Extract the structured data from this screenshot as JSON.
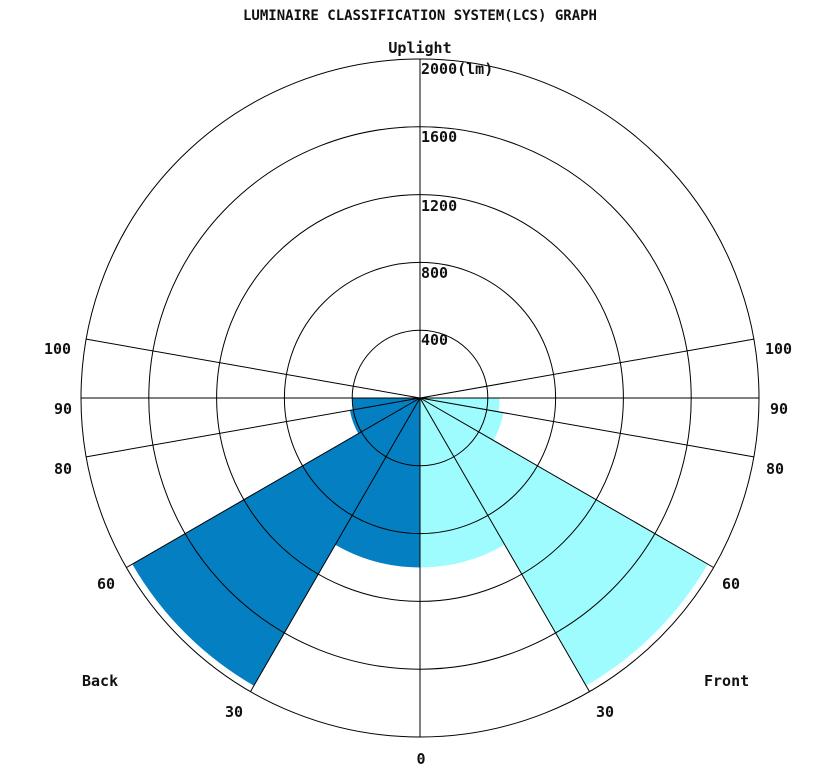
{
  "chart_data": {
    "type": "polar-area",
    "title": "LUMINAIRE CLASSIFICATION SYSTEM(LCS) GRAPH",
    "unit_label": "2000(lm)",
    "radial_ticks": [
      "400",
      "800",
      "1200",
      "1600"
    ],
    "rmax": 2000,
    "angle_labels": {
      "front": [
        "30",
        "60",
        "80",
        "90",
        "100"
      ],
      "back": [
        "30",
        "60",
        "80",
        "90",
        "100"
      ],
      "bottom": "0",
      "top": "Uplight"
    },
    "side_labels": {
      "front": "Front",
      "back": "Back"
    },
    "colors": {
      "back": "#0480c2",
      "front": "#9ffcfe",
      "grid": "#000000"
    },
    "zones": [
      {
        "side": "front",
        "from_deg": 0,
        "to_deg": 30,
        "lumens": 1000
      },
      {
        "side": "front",
        "from_deg": 30,
        "to_deg": 60,
        "lumens": 1960
      },
      {
        "side": "front",
        "from_deg": 60,
        "to_deg": 80,
        "lumens": 500
      },
      {
        "side": "front",
        "from_deg": 80,
        "to_deg": 90,
        "lumens": 470
      },
      {
        "side": "back",
        "from_deg": 0,
        "to_deg": 30,
        "lumens": 1000
      },
      {
        "side": "back",
        "from_deg": 30,
        "to_deg": 60,
        "lumens": 1960
      },
      {
        "side": "back",
        "from_deg": 60,
        "to_deg": 80,
        "lumens": 420
      },
      {
        "side": "back",
        "from_deg": 80,
        "to_deg": 90,
        "lumens": 400
      }
    ]
  }
}
